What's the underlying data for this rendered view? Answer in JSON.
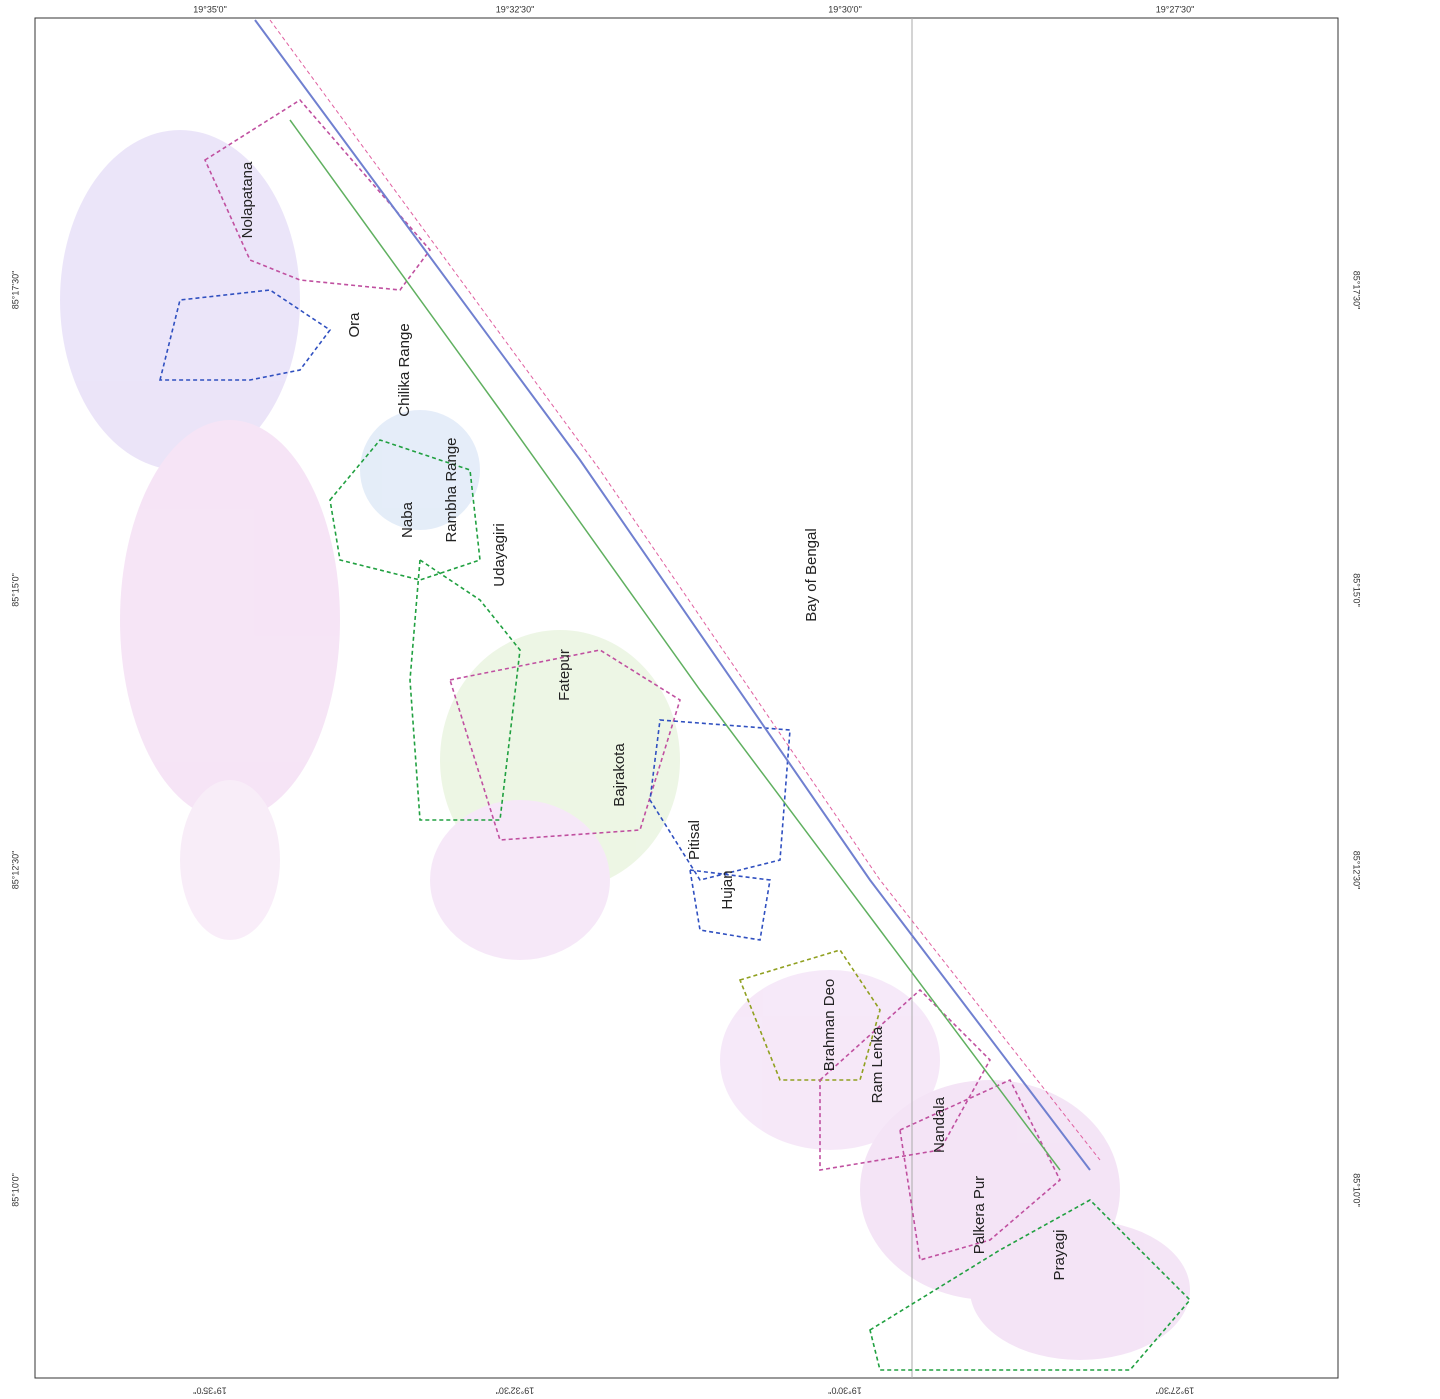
{
  "map": {
    "top_labels": [
      "19°35'0\"",
      "19°32'30\"",
      "19°30'0\"",
      "19°27'30\""
    ],
    "bottom_labels": [
      "19°35'0\"",
      "19°32'30\"",
      "19°30'0\"",
      "19°27'30\""
    ],
    "left_labels": [
      "85°17'30\"",
      "85°15'0\"",
      "85°12'30\"",
      "85°10'0\""
    ],
    "right_labels": [
      "85°17'30\"",
      "85°15'0\"",
      "85°12'30\"",
      "85°10'0\""
    ],
    "places": [
      "Nolapatana",
      "Ora",
      "Chilika Range",
      "Naba",
      "Rambha Range",
      "Udayagiri",
      "Fatepur",
      "Bajrakota",
      "Pitisal",
      "Hujan",
      "Brahman Deo",
      "Ram Lenka",
      "Nandala",
      "Palkera Pur",
      "Prayagi",
      "Bay of Bengal"
    ]
  }
}
